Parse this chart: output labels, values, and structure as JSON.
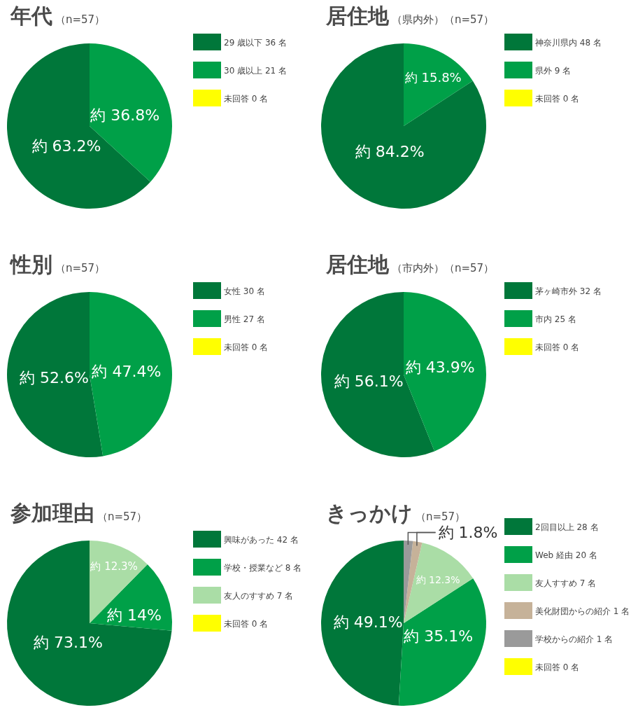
{
  "chart_data": [
    {
      "type": "pie",
      "title": "年代",
      "subtitle": "（n=57）",
      "categories": [
        "29 歳以下 36 名",
        "30 歳以上 21 名",
        "未回答 0 名"
      ],
      "values": [
        63.2,
        36.8,
        0
      ],
      "colors": [
        "#00773a",
        "#00a048",
        "#ffff00"
      ],
      "value_labels": [
        "約 63.2%",
        "約 36.8%",
        null
      ],
      "legend": "right"
    },
    {
      "type": "pie",
      "title": "居住地",
      "subtitle": "（県内外）（n=57）",
      "categories": [
        "神奈川県内 48 名",
        "県外 9 名",
        "未回答 0 名"
      ],
      "values": [
        84.2,
        15.8,
        0
      ],
      "colors": [
        "#00773a",
        "#00a048",
        "#ffff00"
      ],
      "value_labels": [
        "約 84.2%",
        "約 15.8%",
        null
      ],
      "legend": "right"
    },
    {
      "type": "pie",
      "title": "性別",
      "subtitle": "（n=57）",
      "categories": [
        "女性 30 名",
        "男性 27 名",
        "未回答 0 名"
      ],
      "values": [
        52.6,
        47.4,
        0
      ],
      "colors": [
        "#00773a",
        "#00a048",
        "#ffff00"
      ],
      "value_labels": [
        "約 52.6%",
        "約 47.4%",
        null
      ],
      "legend": "right"
    },
    {
      "type": "pie",
      "title": "居住地",
      "subtitle": "（市内外）（n=57）",
      "categories": [
        "茅ヶ崎市外 32 名",
        "市内 25 名",
        "未回答 0 名"
      ],
      "values": [
        56.1,
        43.9,
        0
      ],
      "colors": [
        "#00773a",
        "#00a048",
        "#ffff00"
      ],
      "value_labels": [
        "約 56.1%",
        "約 43.9%",
        null
      ],
      "legend": "right"
    },
    {
      "type": "pie",
      "title": "参加理由",
      "subtitle": "（n=57）",
      "categories": [
        "興味があった 42 名",
        "学校・授業など 8 名",
        "友人のすすめ 7 名",
        "未回答 0 名"
      ],
      "values": [
        73.1,
        14,
        12.3,
        0
      ],
      "colors": [
        "#00773a",
        "#00a048",
        "#aadda6",
        "#ffff00"
      ],
      "value_labels": [
        "約 73.1%",
        "約 14%",
        "約 12.3%",
        null
      ],
      "legend": "right"
    },
    {
      "type": "pie",
      "title": "きっかけ",
      "subtitle": "（n=57）",
      "categories": [
        "2回目以上 28 名",
        "Web 経由 20 名",
        "友人すすめ 7 名",
        "美化財団からの紹介 1 名",
        "学校からの紹介 1 名",
        "未回答 0 名"
      ],
      "values": [
        49.1,
        35.1,
        12.3,
        1.8,
        1.8,
        0
      ],
      "colors": [
        "#00773a",
        "#00a048",
        "#aadda6",
        "#c6b299",
        "#9a9a9a",
        "#ffff00"
      ],
      "value_labels": [
        "約 49.1%",
        "約 35.1%",
        "約 12.3%",
        "約 1.8%",
        null,
        null
      ],
      "legend": "right"
    }
  ]
}
